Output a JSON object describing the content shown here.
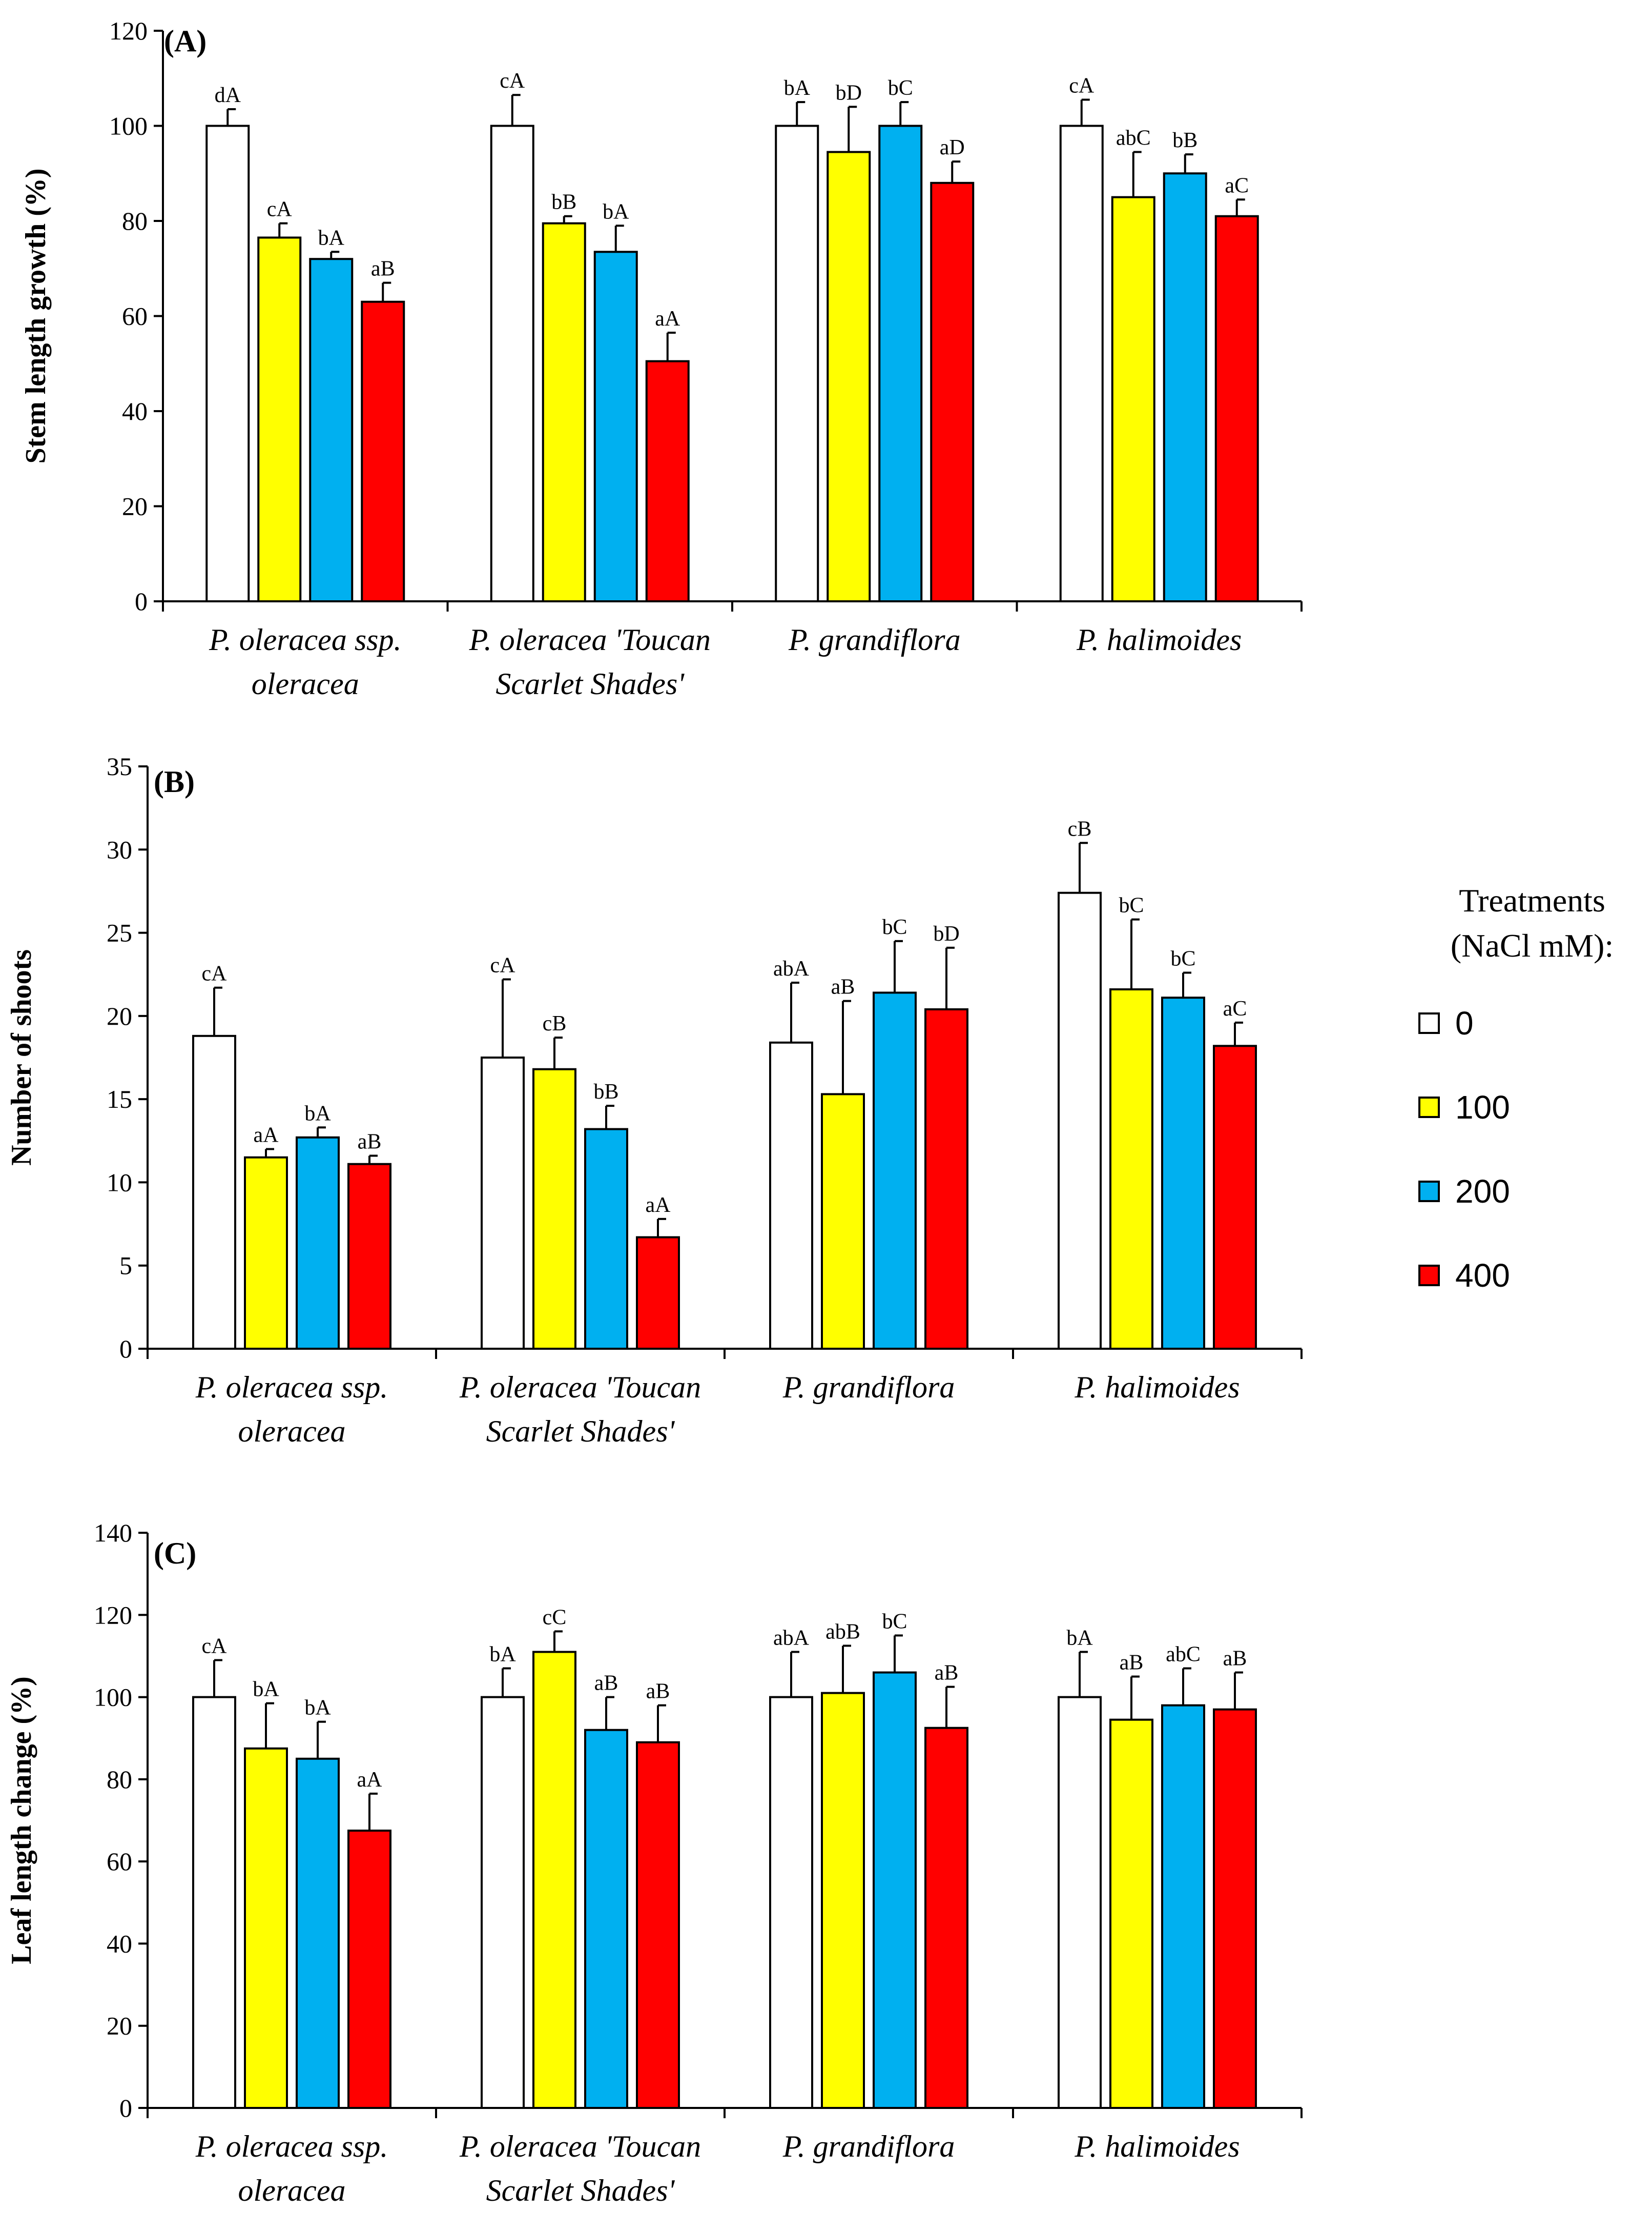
{
  "legend": {
    "title_line1": "Treatments",
    "title_line2": "(NaCl mM):",
    "items": [
      {
        "label": "0",
        "color": "#ffffff"
      },
      {
        "label": "100",
        "color": "#ffff00"
      },
      {
        "label": "200",
        "color": "#00b0f0"
      },
      {
        "label": "400",
        "color": "#ff0000"
      }
    ]
  },
  "chart_data": [
    {
      "type": "bar",
      "panel": "(A)",
      "ylabel": "Stem length growth (%)",
      "ylim": [
        0,
        120
      ],
      "yticks": [
        0,
        20,
        40,
        60,
        80,
        100,
        120
      ],
      "categories": [
        [
          "P. oleracea ssp.",
          "oleracea"
        ],
        [
          "P. oleracea 'Toucan",
          "Scarlet Shades'"
        ],
        [
          "P. grandiflora"
        ],
        [
          "P. halimoides"
        ]
      ],
      "series": [
        {
          "name": "0",
          "values": [
            100,
            100,
            100,
            100
          ],
          "errors": [
            3.5,
            6.5,
            5,
            5.5
          ],
          "labels": [
            "dA",
            "cA",
            "bA",
            "cA"
          ]
        },
        {
          "name": "100",
          "values": [
            76.5,
            79.5,
            94.5,
            85
          ],
          "errors": [
            3,
            1.5,
            9.5,
            9.5
          ],
          "labels": [
            "cA",
            "bB",
            "bD",
            "abC"
          ]
        },
        {
          "name": "200",
          "values": [
            72,
            73.5,
            100,
            90
          ],
          "errors": [
            1.5,
            5.5,
            5,
            4
          ],
          "labels": [
            "bA",
            "bA",
            "bC",
            "bB"
          ]
        },
        {
          "name": "400",
          "values": [
            63,
            50.5,
            88,
            81
          ],
          "errors": [
            4,
            6,
            4.5,
            3.5
          ],
          "labels": [
            "aB",
            "aA",
            "aD",
            "aC"
          ]
        }
      ]
    },
    {
      "type": "bar",
      "panel": "(B)",
      "ylabel": "Number of shoots",
      "ylim": [
        0,
        35
      ],
      "yticks": [
        0,
        5,
        10,
        15,
        20,
        25,
        30,
        35
      ],
      "categories": [
        [
          "P. oleracea ssp.",
          "oleracea"
        ],
        [
          "P. oleracea 'Toucan",
          "Scarlet Shades'"
        ],
        [
          "P. grandiflora"
        ],
        [
          "P. halimoides"
        ]
      ],
      "series": [
        {
          "name": "0",
          "values": [
            18.8,
            17.5,
            18.4,
            27.4
          ],
          "errors": [
            2.9,
            4.7,
            3.6,
            3
          ],
          "labels": [
            "cA",
            "cA",
            "abA",
            "cB"
          ]
        },
        {
          "name": "100",
          "values": [
            11.5,
            16.8,
            15.3,
            21.6
          ],
          "errors": [
            0.5,
            1.9,
            5.6,
            4.2
          ],
          "labels": [
            "aA",
            "cB",
            "aB",
            "bC"
          ]
        },
        {
          "name": "200",
          "values": [
            12.7,
            13.2,
            21.4,
            21.1
          ],
          "errors": [
            0.6,
            1.4,
            3.1,
            1.5
          ],
          "labels": [
            "bA",
            "bB",
            "bC",
            "bC"
          ]
        },
        {
          "name": "400",
          "values": [
            11.1,
            6.7,
            20.4,
            18.2
          ],
          "errors": [
            0.5,
            1.1,
            3.7,
            1.4
          ],
          "labels": [
            "aB",
            "aA",
            "bD",
            "aC"
          ]
        }
      ]
    },
    {
      "type": "bar",
      "panel": "(C)",
      "ylabel": "Leaf length change (%)",
      "ylim": [
        0,
        140
      ],
      "yticks": [
        0,
        20,
        40,
        60,
        80,
        100,
        120,
        140
      ],
      "categories": [
        [
          "P. oleracea ssp.",
          "oleracea"
        ],
        [
          "P. oleracea 'Toucan",
          "Scarlet Shades'"
        ],
        [
          "P. grandiflora"
        ],
        [
          "P. halimoides"
        ]
      ],
      "series": [
        {
          "name": "0",
          "values": [
            100,
            100,
            100,
            100
          ],
          "errors": [
            9,
            7,
            11,
            11
          ],
          "labels": [
            "cA",
            "bA",
            "abA",
            "bA"
          ]
        },
        {
          "name": "100",
          "values": [
            87.5,
            111,
            101,
            94.5
          ],
          "errors": [
            11,
            5,
            11.5,
            10.5
          ],
          "labels": [
            "bA",
            "cC",
            "abB",
            "aB"
          ]
        },
        {
          "name": "200",
          "values": [
            85,
            92,
            106,
            98
          ],
          "errors": [
            9,
            8,
            9,
            9
          ],
          "labels": [
            "bA",
            "aB",
            "bC",
            "abC"
          ]
        },
        {
          "name": "400",
          "values": [
            67.5,
            89,
            92.5,
            97
          ],
          "errors": [
            9,
            9,
            10,
            9
          ],
          "labels": [
            "aA",
            "aB",
            "aB",
            "aB"
          ]
        }
      ]
    }
  ]
}
